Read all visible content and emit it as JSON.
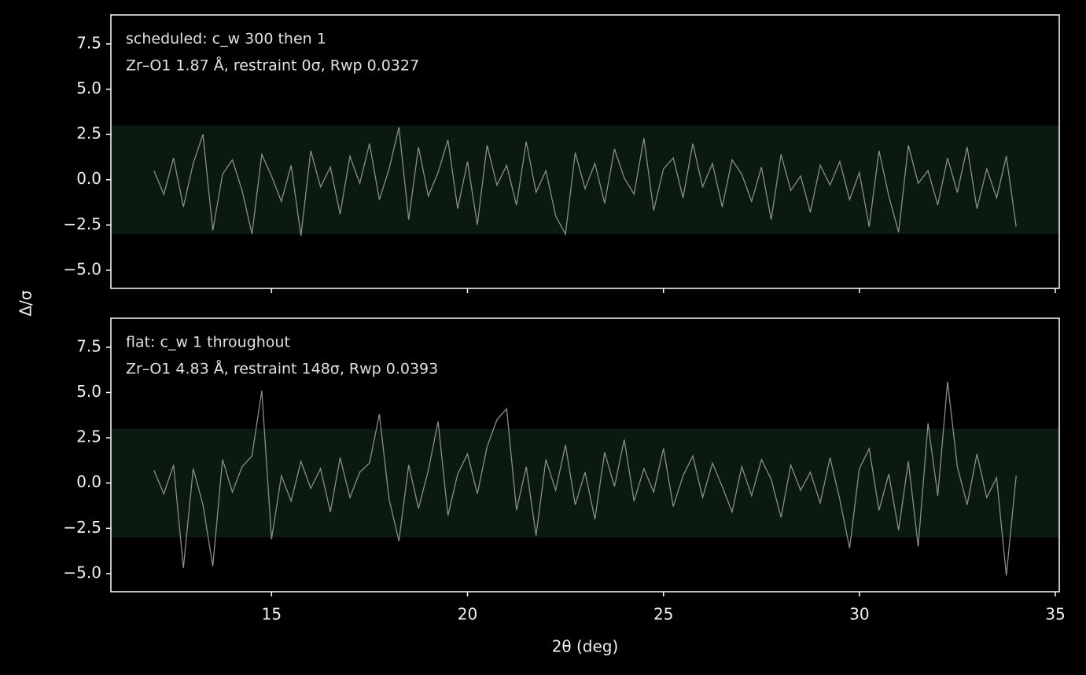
{
  "chart_data": [
    {
      "type": "line",
      "annotations": [
        "scheduled: c_w 300 then 1",
        "Zr–O1 1.87 Å, restraint 0σ, Rwp 0.0327"
      ],
      "x": [
        12,
        12.25,
        12.5,
        12.75,
        13,
        13.25,
        13.5,
        13.75,
        14,
        14.25,
        14.5,
        14.75,
        15,
        15.25,
        15.5,
        15.75,
        16,
        16.25,
        16.5,
        16.75,
        17,
        17.25,
        17.5,
        17.75,
        18,
        18.25,
        18.5,
        18.75,
        19,
        19.25,
        19.5,
        19.75,
        20,
        20.25,
        20.5,
        20.75,
        21,
        21.25,
        21.5,
        21.75,
        22,
        22.25,
        22.5,
        22.75,
        23,
        23.25,
        23.5,
        23.75,
        24,
        24.25,
        24.5,
        24.75,
        25,
        25.25,
        25.5,
        25.75,
        26,
        26.25,
        26.5,
        26.75,
        27,
        27.25,
        27.5,
        27.75,
        28,
        28.25,
        28.5,
        28.75,
        29,
        29.25,
        29.5,
        29.75,
        30,
        30.25,
        30.5,
        30.75,
        31,
        31.25,
        31.5,
        31.75,
        32,
        32.25,
        32.5,
        32.75,
        33,
        33.25,
        33.5,
        33.75,
        34
      ],
      "series": [
        {
          "color": "#8c8c8c",
          "values": [
            0.5,
            -0.8,
            1.2,
            -1.5,
            0.9,
            2.5,
            -2.8,
            0.3,
            1.1,
            -0.6,
            -3.0,
            1.4,
            0.2,
            -1.2,
            0.8,
            -3.1,
            1.6,
            -0.4,
            0.7,
            -1.9,
            1.3,
            -0.2,
            2.0,
            -1.1,
            0.6,
            2.9,
            -2.2,
            1.8,
            -0.9,
            0.4,
            2.2,
            -1.6,
            1.0,
            -2.5,
            1.9,
            -0.3,
            0.8,
            -1.4,
            2.1,
            -0.7,
            0.5,
            -2.0,
            -3.0,
            1.5,
            -0.5,
            0.9,
            -1.3,
            1.7,
            0.1,
            -0.8,
            2.3,
            -1.7,
            0.6,
            1.2,
            -1.0,
            2.0,
            -0.4,
            0.9,
            -1.5,
            1.1,
            0.3,
            -1.2,
            0.7,
            -2.2,
            1.4,
            -0.6,
            0.2,
            -1.8,
            0.8,
            -0.3,
            1.0,
            -1.1,
            0.4,
            -2.6,
            1.6,
            -0.9,
            -2.9,
            1.9,
            -0.2,
            0.5,
            -1.4,
            1.2,
            -0.7,
            1.8,
            -1.6,
            0.6,
            -1.0,
            1.3,
            -2.6
          ]
        }
      ],
      "band": [
        -3,
        3
      ],
      "band_color": "#0b1a0e",
      "xlim": [
        10.9,
        35.1
      ],
      "xticks": [
        15,
        20,
        25,
        30,
        35
      ],
      "show_xtick_labels": false,
      "ylim": [
        -6,
        9.1
      ],
      "yticks": [
        {
          "value": 7.5,
          "label": "7.5"
        },
        {
          "value": 5,
          "label": "5.0"
        },
        {
          "value": 2.5,
          "label": "2.5"
        },
        {
          "value": 0,
          "label": "0.0"
        },
        {
          "value": -2.5,
          "label": "−2.5"
        },
        {
          "value": -5,
          "label": "−5.0"
        }
      ]
    },
    {
      "type": "line",
      "annotations": [
        "flat: c_w 1 throughout",
        "Zr–O1 4.83 Å, restraint 148σ, Rwp 0.0393"
      ],
      "xlabel": "2θ (deg)",
      "ylabel": "Δ/σ",
      "x": [
        12,
        12.25,
        12.5,
        12.75,
        13,
        13.25,
        13.5,
        13.75,
        14,
        14.25,
        14.5,
        14.75,
        15,
        15.25,
        15.5,
        15.75,
        16,
        16.25,
        16.5,
        16.75,
        17,
        17.25,
        17.5,
        17.75,
        18,
        18.25,
        18.5,
        18.75,
        19,
        19.25,
        19.5,
        19.75,
        20,
        20.25,
        20.5,
        20.75,
        21,
        21.25,
        21.5,
        21.75,
        22,
        22.25,
        22.5,
        22.75,
        23,
        23.25,
        23.5,
        23.75,
        24,
        24.25,
        24.5,
        24.75,
        25,
        25.25,
        25.5,
        25.75,
        26,
        26.25,
        26.5,
        26.75,
        27,
        27.25,
        27.5,
        27.75,
        28,
        28.25,
        28.5,
        28.75,
        29,
        29.25,
        29.5,
        29.75,
        30,
        30.25,
        30.5,
        30.75,
        31,
        31.25,
        31.5,
        31.75,
        32,
        32.25,
        32.5,
        32.75,
        33,
        33.25,
        33.5,
        33.75,
        34
      ],
      "series": [
        {
          "color": "#8c8c8c",
          "values": [
            0.7,
            -0.6,
            1.0,
            -4.7,
            0.8,
            -1.2,
            -4.6,
            1.3,
            -0.5,
            0.9,
            1.5,
            5.1,
            -3.1,
            0.4,
            -1.0,
            1.2,
            -0.3,
            0.8,
            -1.6,
            1.4,
            -0.8,
            0.6,
            1.1,
            3.8,
            -0.9,
            -3.2,
            1.0,
            -1.4,
            0.7,
            3.4,
            -1.8,
            0.5,
            1.6,
            -0.6,
            2.0,
            3.5,
            4.1,
            -1.5,
            0.9,
            -2.9,
            1.3,
            -0.4,
            2.1,
            -1.2,
            0.6,
            -2.0,
            1.7,
            -0.2,
            2.4,
            -1.0,
            0.8,
            -0.5,
            1.9,
            -1.3,
            0.4,
            1.5,
            -0.8,
            1.1,
            -0.2,
            -1.6,
            0.9,
            -0.7,
            1.3,
            0.2,
            -1.9,
            1.0,
            -0.4,
            0.6,
            -1.1,
            1.4,
            -0.9,
            -3.6,
            0.8,
            1.9,
            -1.5,
            0.5,
            -2.6,
            1.2,
            -3.5,
            3.3,
            -0.7,
            5.6,
            0.9,
            -1.2,
            1.6,
            -0.8,
            0.3,
            -5.1,
            0.4
          ]
        }
      ],
      "band": [
        -3,
        3
      ],
      "band_color": "#0b1a0e",
      "xlim": [
        10.9,
        35.1
      ],
      "xticks": [
        15,
        20,
        25,
        30,
        35
      ],
      "show_xtick_labels": true,
      "ylim": [
        -6,
        9.1
      ],
      "yticks": [
        {
          "value": 7.5,
          "label": "7.5"
        },
        {
          "value": 5,
          "label": "5.0"
        },
        {
          "value": 2.5,
          "label": "2.5"
        },
        {
          "value": 0,
          "label": "0.0"
        },
        {
          "value": -2.5,
          "label": "−2.5"
        },
        {
          "value": -5,
          "label": "−5.0"
        }
      ]
    }
  ]
}
